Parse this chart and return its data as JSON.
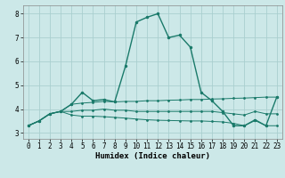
{
  "xlabel": "Humidex (Indice chaleur)",
  "background_color": "#cce8e8",
  "grid_color": "#aacfcf",
  "line_color": "#1a7a6a",
  "xlim": [
    -0.5,
    23.5
  ],
  "ylim": [
    2.75,
    8.35
  ],
  "yticks": [
    3,
    4,
    5,
    6,
    7,
    8
  ],
  "xticks": [
    0,
    1,
    2,
    3,
    4,
    5,
    6,
    7,
    8,
    9,
    10,
    11,
    12,
    13,
    14,
    15,
    16,
    17,
    18,
    19,
    20,
    21,
    22,
    23
  ],
  "series": {
    "main": {
      "x": [
        0,
        1,
        2,
        3,
        4,
        5,
        6,
        7,
        8,
        9,
        10,
        11,
        12,
        13,
        14,
        15,
        16,
        17,
        18,
        19,
        20,
        21,
        22,
        23
      ],
      "y": [
        3.3,
        3.5,
        3.8,
        3.9,
        4.2,
        4.7,
        4.35,
        4.4,
        4.3,
        5.8,
        7.65,
        7.85,
        8.0,
        7.0,
        7.1,
        6.6,
        4.7,
        4.35,
        3.9,
        3.3,
        3.3,
        3.55,
        3.3,
        4.5
      ]
    },
    "upper": {
      "x": [
        0,
        1,
        2,
        3,
        4,
        5,
        6,
        7,
        8,
        9,
        10,
        11,
        12,
        13,
        14,
        15,
        16,
        17,
        18,
        19,
        20,
        21,
        22,
        23
      ],
      "y": [
        3.3,
        3.5,
        3.8,
        3.9,
        4.2,
        4.25,
        4.28,
        4.32,
        4.3,
        4.32,
        4.32,
        4.35,
        4.35,
        4.37,
        4.38,
        4.4,
        4.4,
        4.42,
        4.43,
        4.45,
        4.46,
        4.48,
        4.5,
        4.5
      ]
    },
    "mid": {
      "x": [
        0,
        1,
        2,
        3,
        4,
        5,
        6,
        7,
        8,
        9,
        10,
        11,
        12,
        13,
        14,
        15,
        16,
        17,
        18,
        19,
        20,
        21,
        22,
        23
      ],
      "y": [
        3.3,
        3.5,
        3.8,
        3.9,
        3.9,
        3.95,
        3.95,
        4.0,
        3.95,
        3.95,
        3.9,
        3.9,
        3.9,
        3.9,
        3.9,
        3.9,
        3.9,
        3.9,
        3.85,
        3.8,
        3.75,
        3.9,
        3.8,
        3.8
      ]
    },
    "lower": {
      "x": [
        0,
        1,
        2,
        3,
        4,
        5,
        6,
        7,
        8,
        9,
        10,
        11,
        12,
        13,
        14,
        15,
        16,
        17,
        18,
        19,
        20,
        21,
        22,
        23
      ],
      "y": [
        3.3,
        3.5,
        3.8,
        3.9,
        3.75,
        3.7,
        3.7,
        3.68,
        3.65,
        3.62,
        3.58,
        3.55,
        3.53,
        3.52,
        3.51,
        3.5,
        3.5,
        3.48,
        3.46,
        3.4,
        3.3,
        3.52,
        3.3,
        3.3
      ]
    }
  }
}
